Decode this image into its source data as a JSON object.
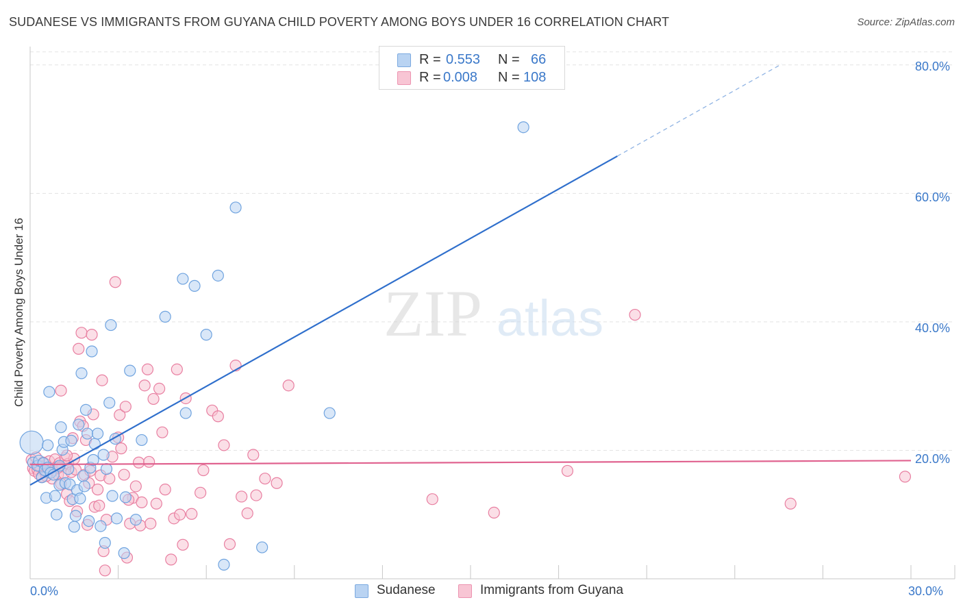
{
  "title": "SUDANESE VS IMMIGRANTS FROM GUYANA CHILD POVERTY AMONG BOYS UNDER 16 CORRELATION CHART",
  "source": "Source: ZipAtlas.com",
  "watermark": {
    "zip": "ZIP",
    "atlas": "atlas"
  },
  "legend_top": {
    "rows": [
      {
        "r_label": "R =",
        "r_value": "0.553",
        "n_label": "N =",
        "n_value": "66",
        "color": "#a8c8ef"
      },
      {
        "r_label": "R =",
        "r_value": "0.008",
        "n_label": "N =",
        "n_value": "108",
        "color": "#f6b9cc"
      }
    ]
  },
  "legend_bottom": [
    {
      "label": "Sudanese",
      "color": "#a8c8ef"
    },
    {
      "label": "Immigrants from Guyana",
      "color": "#f6b9cc"
    }
  ],
  "axes": {
    "ylabel": "Child Poverty Among Boys Under 16",
    "x_min_label": "0.0%",
    "x_max_label": "30.0%",
    "y_ticks": [
      "80.0%",
      "60.0%",
      "40.0%",
      "20.0%"
    ]
  },
  "chart_data": {
    "type": "scatter",
    "title": "SUDANESE VS IMMIGRANTS FROM GUYANA CHILD POVERTY AMONG BOYS UNDER 16 CORRELATION CHART",
    "xlabel": "",
    "ylabel": "Child Poverty Among Boys Under 16",
    "xlim": [
      0,
      30
    ],
    "ylim": [
      0,
      82
    ],
    "y_ticks": [
      20,
      40,
      60,
      80
    ],
    "grid": true,
    "legend_placement": "top-center",
    "series": [
      {
        "name": "Sudanese",
        "color": "#6fa3df",
        "fill": "#b9d3f2",
        "r": 0.553,
        "n": 66,
        "trend": {
          "x0": 0,
          "y0": 14.6,
          "x1": 20,
          "y1": 65.8,
          "dashed_to_x": 25.6
        },
        "points": [
          [
            0.05,
            21.2
          ],
          [
            0.1,
            18.1
          ],
          [
            0.25,
            17.6
          ],
          [
            0.3,
            18.4
          ],
          [
            0.4,
            15.8
          ],
          [
            0.45,
            18.0
          ],
          [
            0.5,
            16.9
          ],
          [
            0.55,
            12.6
          ],
          [
            0.6,
            17.3
          ],
          [
            0.7,
            16.5
          ],
          [
            0.8,
            16.2
          ],
          [
            0.6,
            20.8
          ],
          [
            0.65,
            29.1
          ],
          [
            0.85,
            12.9
          ],
          [
            0.9,
            10.0
          ],
          [
            1.0,
            14.6
          ],
          [
            1.05,
            23.6
          ],
          [
            1.1,
            20.1
          ],
          [
            1.15,
            21.3
          ],
          [
            1.2,
            14.9
          ],
          [
            1.3,
            17.1
          ],
          [
            1.35,
            14.7
          ],
          [
            1.4,
            21.5
          ],
          [
            1.45,
            12.4
          ],
          [
            1.5,
            8.1
          ],
          [
            1.55,
            9.8
          ],
          [
            1.6,
            13.8
          ],
          [
            1.65,
            24.0
          ],
          [
            1.7,
            12.5
          ],
          [
            1.75,
            32.0
          ],
          [
            1.8,
            16.0
          ],
          [
            1.85,
            14.4
          ],
          [
            1.9,
            26.3
          ],
          [
            1.95,
            22.6
          ],
          [
            2.0,
            9.0
          ],
          [
            2.05,
            17.3
          ],
          [
            2.1,
            35.4
          ],
          [
            2.15,
            18.5
          ],
          [
            2.2,
            21.0
          ],
          [
            2.3,
            22.6
          ],
          [
            2.4,
            8.2
          ],
          [
            2.5,
            19.3
          ],
          [
            2.55,
            5.6
          ],
          [
            2.6,
            17.1
          ],
          [
            2.7,
            27.4
          ],
          [
            2.75,
            39.5
          ],
          [
            2.8,
            12.9
          ],
          [
            2.9,
            21.8
          ],
          [
            2.95,
            9.4
          ],
          [
            3.2,
            4.0
          ],
          [
            3.25,
            12.7
          ],
          [
            3.4,
            32.4
          ],
          [
            3.6,
            9.2
          ],
          [
            3.8,
            21.6
          ],
          [
            4.6,
            40.8
          ],
          [
            5.2,
            46.7
          ],
          [
            5.3,
            25.8
          ],
          [
            5.6,
            45.6
          ],
          [
            6.0,
            38.0
          ],
          [
            6.4,
            47.2
          ],
          [
            6.6,
            2.2
          ],
          [
            7.0,
            57.8
          ],
          [
            7.9,
            4.9
          ],
          [
            10.2,
            25.8
          ],
          [
            16.8,
            70.3
          ],
          [
            1.0,
            17.6
          ]
        ]
      },
      {
        "name": "Immigrants from Guyana",
        "color": "#e87ea0",
        "fill": "#f8c5d4",
        "r": 0.008,
        "n": 108,
        "trend": {
          "x0": 0,
          "y0": 17.8,
          "x1": 30,
          "y1": 18.4
        },
        "points": [
          [
            0.05,
            18.5
          ],
          [
            0.1,
            17.2
          ],
          [
            0.15,
            16.8
          ],
          [
            0.2,
            18.9
          ],
          [
            0.25,
            17.0
          ],
          [
            0.3,
            16.3
          ],
          [
            0.35,
            17.5
          ],
          [
            0.4,
            15.9
          ],
          [
            0.45,
            18.1
          ],
          [
            0.5,
            16.7
          ],
          [
            0.55,
            17.8
          ],
          [
            0.6,
            16.5
          ],
          [
            0.65,
            18.3
          ],
          [
            0.7,
            17.1
          ],
          [
            0.75,
            15.6
          ],
          [
            0.8,
            16.9
          ],
          [
            0.85,
            18.6
          ],
          [
            0.9,
            17.4
          ],
          [
            0.95,
            16.2
          ],
          [
            1.0,
            18.0
          ],
          [
            1.05,
            14.8
          ],
          [
            1.1,
            17.6
          ],
          [
            1.15,
            16.4
          ],
          [
            1.2,
            18.8
          ],
          [
            1.25,
            13.2
          ],
          [
            1.3,
            17.9
          ],
          [
            1.35,
            12.1
          ],
          [
            1.4,
            16.6
          ],
          [
            1.45,
            21.9
          ],
          [
            1.5,
            18.7
          ],
          [
            1.55,
            17.0
          ],
          [
            1.6,
            10.5
          ],
          [
            1.65,
            35.8
          ],
          [
            1.7,
            24.5
          ],
          [
            1.75,
            38.3
          ],
          [
            1.8,
            23.8
          ],
          [
            1.85,
            16.2
          ],
          [
            1.9,
            21.6
          ],
          [
            1.95,
            8.4
          ],
          [
            2.0,
            14.9
          ],
          [
            2.05,
            16.8
          ],
          [
            2.1,
            38.0
          ],
          [
            2.15,
            25.6
          ],
          [
            2.2,
            11.2
          ],
          [
            2.3,
            13.9
          ],
          [
            2.4,
            16.1
          ],
          [
            2.45,
            30.9
          ],
          [
            2.5,
            4.3
          ],
          [
            2.55,
            1.3
          ],
          [
            2.6,
            9.2
          ],
          [
            2.7,
            15.6
          ],
          [
            2.8,
            19.0
          ],
          [
            2.9,
            46.2
          ],
          [
            3.0,
            22.0
          ],
          [
            3.05,
            25.5
          ],
          [
            3.1,
            20.3
          ],
          [
            3.2,
            16.2
          ],
          [
            3.25,
            26.8
          ],
          [
            3.3,
            3.3
          ],
          [
            3.4,
            8.6
          ],
          [
            3.5,
            12.6
          ],
          [
            3.6,
            14.4
          ],
          [
            3.7,
            18.1
          ],
          [
            3.75,
            8.3
          ],
          [
            3.8,
            11.9
          ],
          [
            3.9,
            30.1
          ],
          [
            4.0,
            32.6
          ],
          [
            4.05,
            18.2
          ],
          [
            4.1,
            8.6
          ],
          [
            4.2,
            28.0
          ],
          [
            4.3,
            11.7
          ],
          [
            4.4,
            29.6
          ],
          [
            4.5,
            22.8
          ],
          [
            4.6,
            13.9
          ],
          [
            4.8,
            3.0
          ],
          [
            4.9,
            9.4
          ],
          [
            5.0,
            32.6
          ],
          [
            5.1,
            10.0
          ],
          [
            5.2,
            5.3
          ],
          [
            5.3,
            28.1
          ],
          [
            5.5,
            10.1
          ],
          [
            5.8,
            13.4
          ],
          [
            5.9,
            16.9
          ],
          [
            6.2,
            26.2
          ],
          [
            6.4,
            25.3
          ],
          [
            6.6,
            20.8
          ],
          [
            6.8,
            5.4
          ],
          [
            7.0,
            33.2
          ],
          [
            7.2,
            12.8
          ],
          [
            7.4,
            10.2
          ],
          [
            7.6,
            19.3
          ],
          [
            8.0,
            15.6
          ],
          [
            8.4,
            14.9
          ],
          [
            8.8,
            30.1
          ],
          [
            13.7,
            12.4
          ],
          [
            15.8,
            10.3
          ],
          [
            18.3,
            16.8
          ],
          [
            20.6,
            41.1
          ],
          [
            25.9,
            11.7
          ],
          [
            29.8,
            15.9
          ],
          [
            0.3,
            17.6
          ],
          [
            0.55,
            16.0
          ],
          [
            0.95,
            17.3
          ],
          [
            1.25,
            19.2
          ],
          [
            2.35,
            11.4
          ],
          [
            3.35,
            12.3
          ],
          [
            7.7,
            13.0
          ],
          [
            1.05,
            29.3
          ]
        ]
      }
    ]
  }
}
